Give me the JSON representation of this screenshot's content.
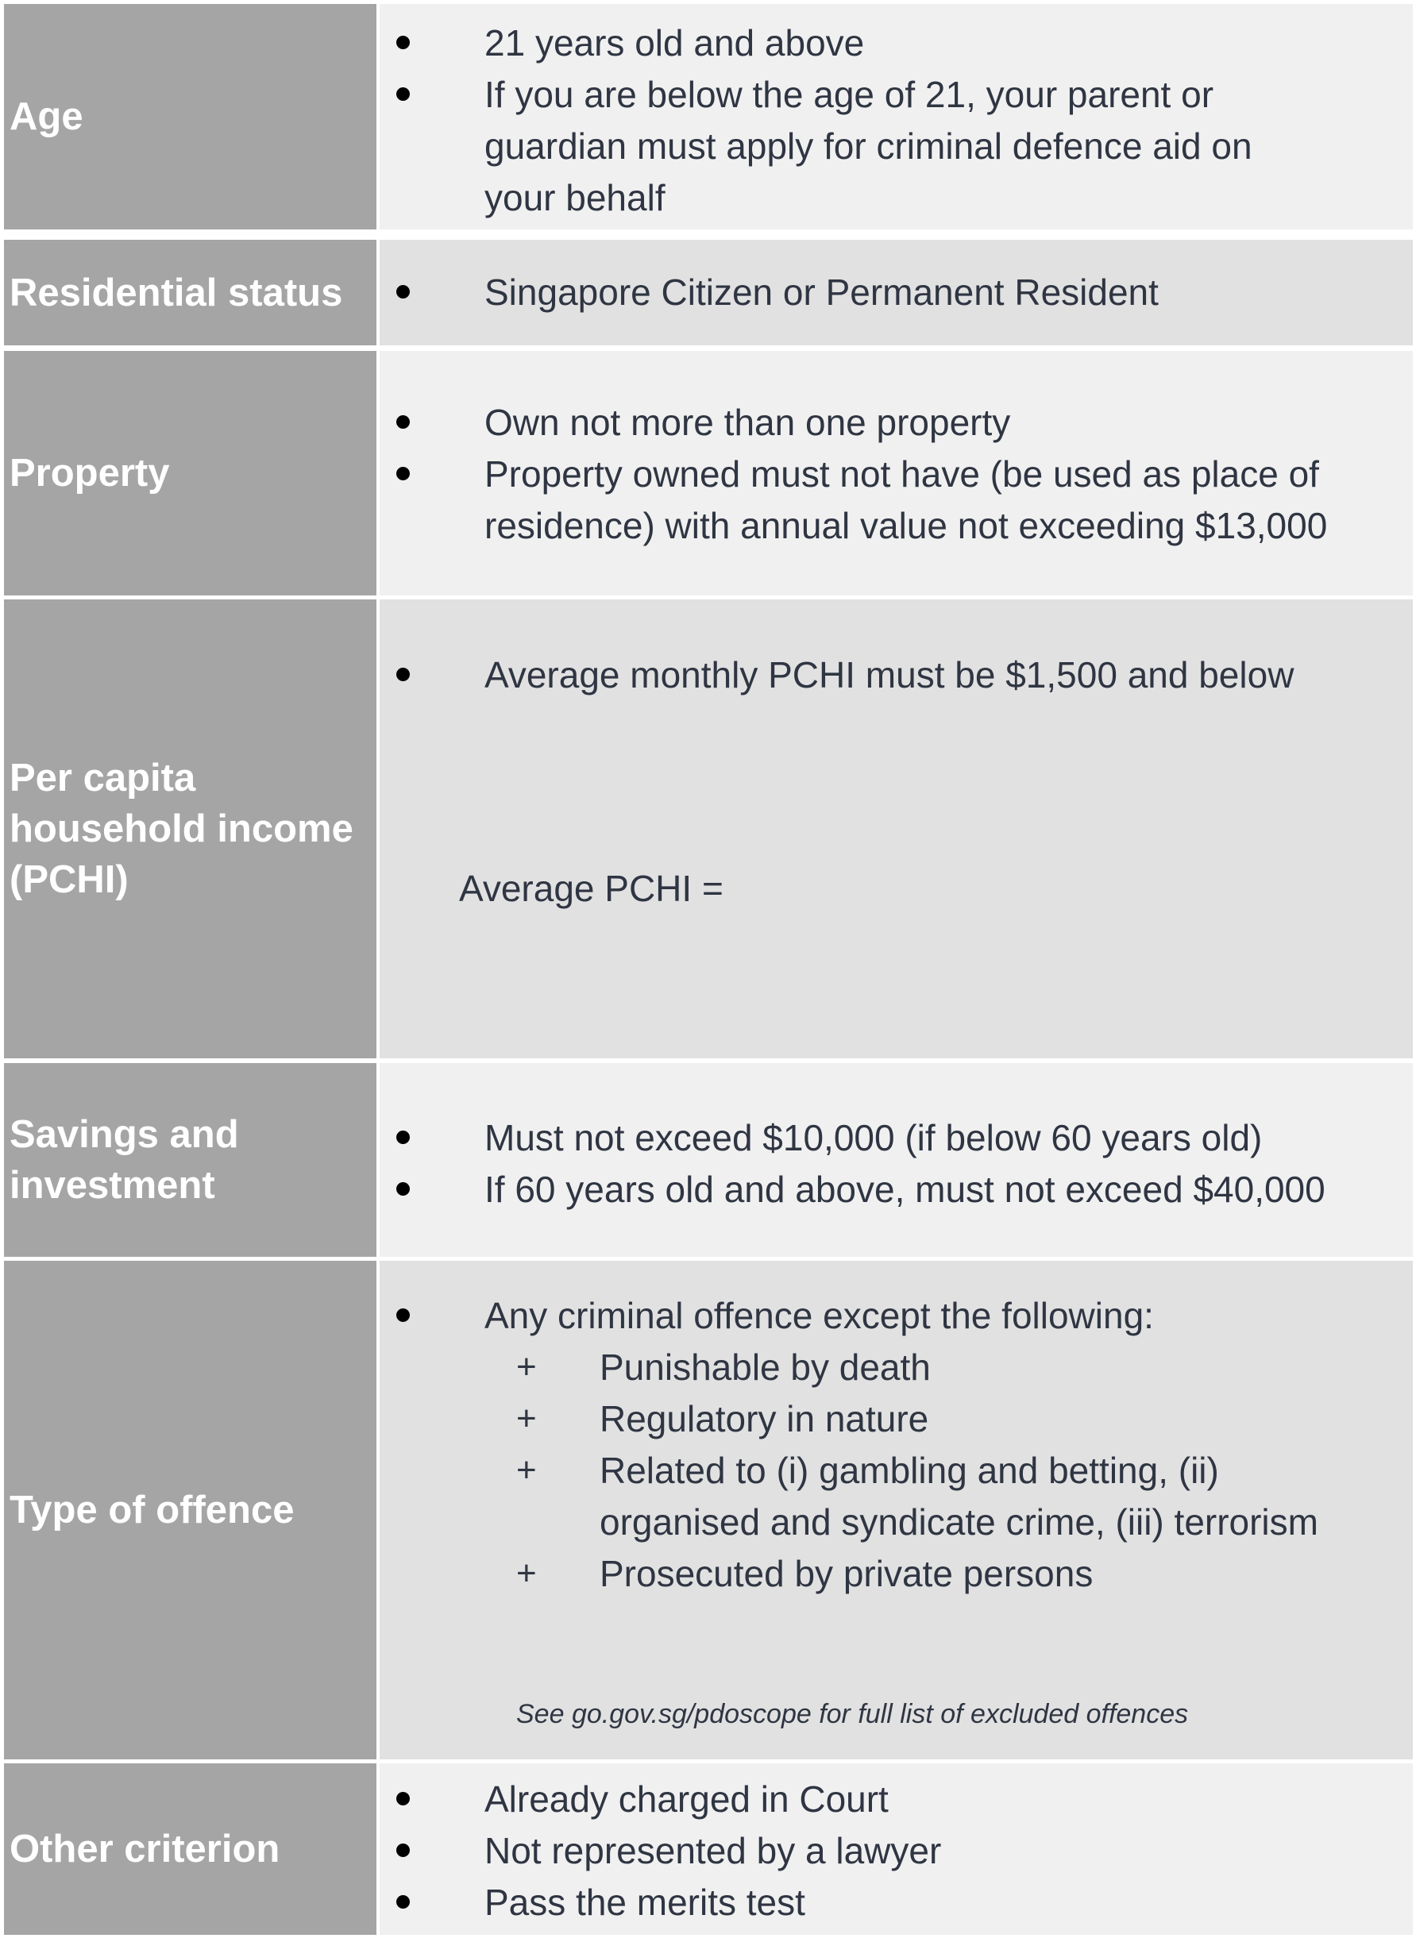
{
  "rows": [
    {
      "label": "Age",
      "bullets": [
        "21 years old and above",
        "If you are below the age of 21, your parent or",
        "guardian must apply for criminal defence aid on",
        "your behalf"
      ]
    },
    {
      "label": "Residential status",
      "bullets": [
        "Singapore Citizen or Permanent Resident"
      ]
    },
    {
      "label": "Property",
      "bullets": [
        "Own not more than one property",
        "Property owned must not have (be used as place of",
        "residence) with annual value not exceeding $13,000"
      ]
    },
    {
      "label_lines": [
        "Per capita",
        "household income",
        "(PCHI)"
      ],
      "bullets": [
        "Average monthly PCHI must be $1,500 and below"
      ],
      "formula": "Average PCHI ="
    },
    {
      "label_lines": [
        "Savings and",
        "investment"
      ],
      "bullets": [
        "Must not exceed $10,000 (if below 60 years old)",
        "If 60 years old and above, must not exceed $40,000"
      ]
    },
    {
      "label": "Type of offence",
      "bullets": [
        "Any criminal offence except the following:"
      ],
      "sub_marker": "+",
      "sub_items": [
        "Punishable by death",
        "Regulatory in nature",
        "Related to (i) gambling and betting, (ii)",
        "organised and syndicate crime, (iii) terrorism",
        "Prosecuted by private persons"
      ],
      "note": "See go.gov.sg/pdoscope for full list of excluded offences"
    },
    {
      "label": "Other criterion",
      "bullets": [
        "Already charged in Court",
        "Not represented by a lawyer",
        "Pass the merits test"
      ]
    }
  ]
}
